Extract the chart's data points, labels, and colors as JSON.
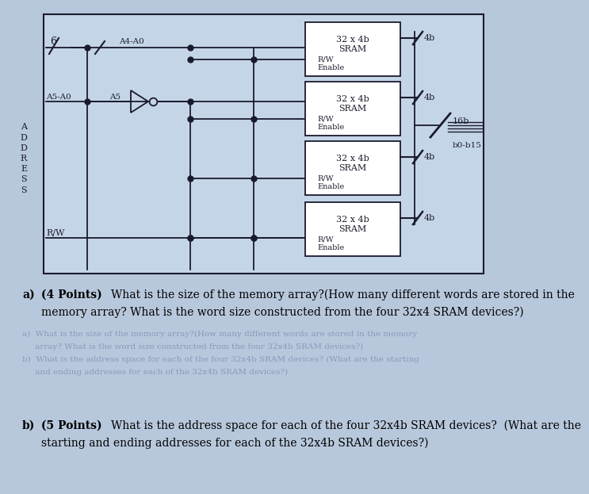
{
  "background_color": "#b8c8dc",
  "diagram_bg": "#c5d5e8",
  "colors": {
    "box_border": "#1a1a2e",
    "line_color": "#1a1a2e",
    "text_dark": "#1a1a2e",
    "text_faded": "#8899bb"
  },
  "sram_labels": [
    "32 x 4b\nSRAM",
    "32 x 4b\nSRAM",
    "32 x 4b\nSRAM",
    "32 x 4b\nSRAM"
  ],
  "label_A4A0": "A4-A0",
  "label_A5A0": "A5-A0",
  "label_A5": "A5",
  "label_6": "6",
  "label_ADDRESS": "A\nD\nD\nR\nE\nS\nS",
  "label_RW": "R/W",
  "label_16b": "16b",
  "label_b0b15": "b0-b15",
  "label_4b": "4b",
  "label_RW_Enable": "R/W\nEnable",
  "faded_lines": [
    "a)  What is the size of the memory array?(How many different words are stored in the memory",
    "     array? What is the word size constructed from the four 32x4b SRAM devices?)",
    "b)  What is the address space for each of the four 32x4b SRAM devices? (What are the starting",
    "     and ending addresses for each of the 32x4b SRAM devices?)"
  ],
  "qa_text": [
    {
      "letter": "a)",
      "bold": "(4 Points)",
      "line1": "What is the size of the memory array?(How many different words are stored in the",
      "line2": "memory array? What is the word size constructed from the four 32x4 SRAM devices?)"
    },
    {
      "letter": "b)",
      "bold": "(5 Points)",
      "line1": "What is the address space for each of the four 32x4b SRAM devices?  (What are the",
      "line2": "starting and ending addresses for each of the 32x4b SRAM devices?)"
    }
  ]
}
